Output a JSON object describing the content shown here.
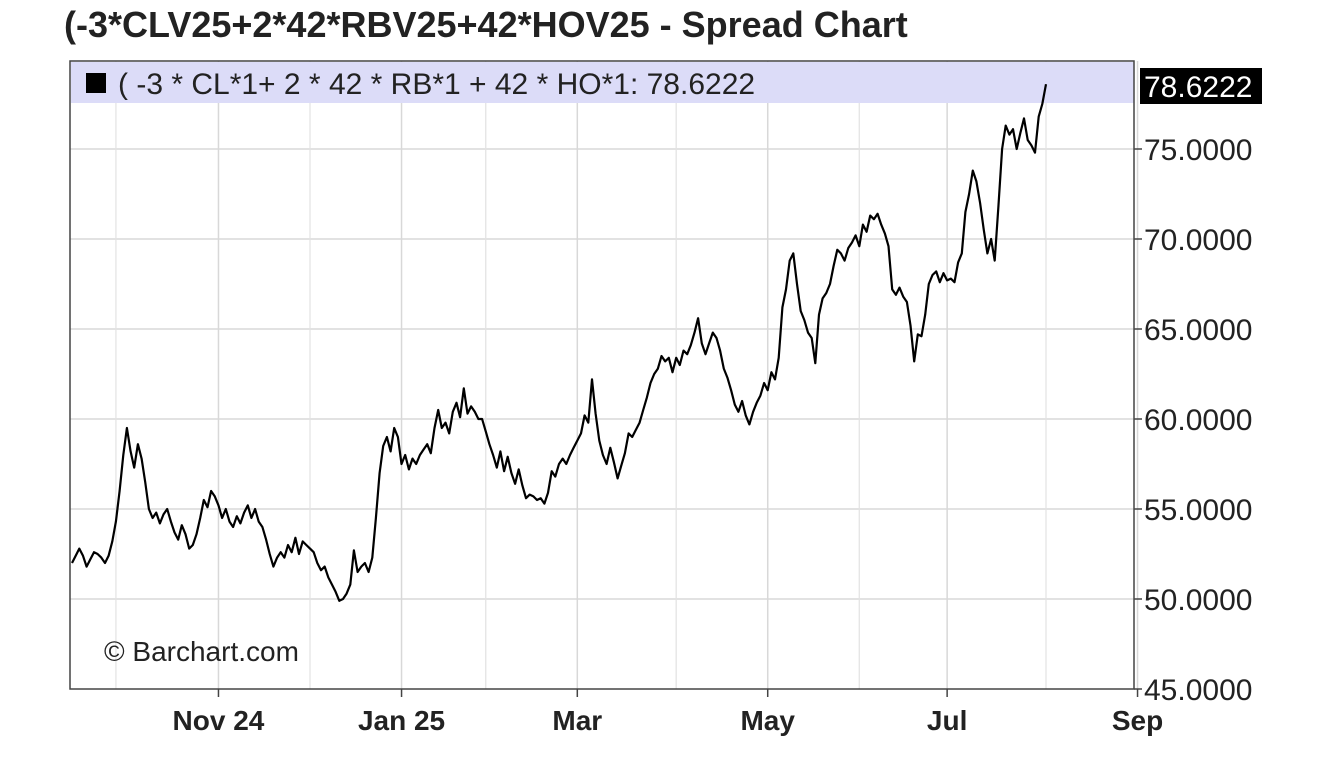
{
  "title": "(-3*CLV25+2*42*RBV25+42*HOV25 - Spread Chart",
  "watermark": "© Barchart.com",
  "chart_data": {
    "type": "line",
    "title": "(-3*CLV25+2*42*RBV25+42*HOV25 - Spread Chart",
    "legend_label": "( -3 * CL*1+ 2 * 42 * RB*1 + 42 * HO*1: 78.6222",
    "last_value_label": "78.6222",
    "ylim": [
      45,
      80
    ],
    "y_ticks": [
      {
        "v": 45,
        "label": "45.0000"
      },
      {
        "v": 50,
        "label": "50.0000"
      },
      {
        "v": 55,
        "label": "55.0000"
      },
      {
        "v": 60,
        "label": "60.0000"
      },
      {
        "v": 65,
        "label": "65.0000"
      },
      {
        "v": 70,
        "label": "70.0000"
      },
      {
        "v": 75,
        "label": "75.0000"
      }
    ],
    "x_range": [
      0,
      330
    ],
    "x_ticks": [
      {
        "t": 40,
        "label": "Nov 24"
      },
      {
        "t": 90,
        "label": "Jan 25"
      },
      {
        "t": 138,
        "label": "Mar"
      },
      {
        "t": 190,
        "label": "May"
      },
      {
        "t": 239,
        "label": "Jul"
      },
      {
        "t": 291,
        "label": "Sep"
      }
    ],
    "minor_grid_t": [
      12,
      65,
      113,
      165,
      215,
      266
    ],
    "grid": true,
    "legend_position": "top-left",
    "series": [
      {
        "color": "#000000",
        "points": [
          [
            0,
            52.0
          ],
          [
            1,
            52.4
          ],
          [
            2,
            52.8
          ],
          [
            3,
            52.4
          ],
          [
            4,
            51.8
          ],
          [
            5,
            52.2
          ],
          [
            6,
            52.6
          ],
          [
            7,
            52.5
          ],
          [
            8,
            52.3
          ],
          [
            9,
            52.0
          ],
          [
            10,
            52.4
          ],
          [
            11,
            53.2
          ],
          [
            12,
            54.3
          ],
          [
            13,
            56.0
          ],
          [
            14,
            58.0
          ],
          [
            15,
            59.5
          ],
          [
            16,
            58.2
          ],
          [
            17,
            57.3
          ],
          [
            18,
            58.6
          ],
          [
            19,
            57.8
          ],
          [
            20,
            56.5
          ],
          [
            21,
            55.0
          ],
          [
            22,
            54.5
          ],
          [
            23,
            54.8
          ],
          [
            24,
            54.2
          ],
          [
            25,
            54.7
          ],
          [
            26,
            55.0
          ],
          [
            27,
            54.3
          ],
          [
            28,
            53.7
          ],
          [
            29,
            53.3
          ],
          [
            30,
            54.1
          ],
          [
            31,
            53.6
          ],
          [
            32,
            52.8
          ],
          [
            33,
            53.0
          ],
          [
            34,
            53.6
          ],
          [
            35,
            54.5
          ],
          [
            36,
            55.5
          ],
          [
            37,
            55.1
          ],
          [
            38,
            56.0
          ],
          [
            39,
            55.7
          ],
          [
            40,
            55.2
          ],
          [
            41,
            54.5
          ],
          [
            42,
            55.0
          ],
          [
            43,
            54.3
          ],
          [
            44,
            54.0
          ],
          [
            45,
            54.6
          ],
          [
            46,
            54.2
          ],
          [
            47,
            54.8
          ],
          [
            48,
            55.2
          ],
          [
            49,
            54.5
          ],
          [
            50,
            55.0
          ],
          [
            51,
            54.3
          ],
          [
            52,
            54.0
          ],
          [
            53,
            53.3
          ],
          [
            54,
            52.5
          ],
          [
            55,
            51.8
          ],
          [
            56,
            52.3
          ],
          [
            57,
            52.6
          ],
          [
            58,
            52.3
          ],
          [
            59,
            53.0
          ],
          [
            60,
            52.6
          ],
          [
            61,
            53.4
          ],
          [
            62,
            52.5
          ],
          [
            63,
            53.2
          ],
          [
            64,
            53.0
          ],
          [
            65,
            52.8
          ],
          [
            66,
            52.6
          ],
          [
            67,
            52.0
          ],
          [
            68,
            51.6
          ],
          [
            69,
            51.8
          ],
          [
            70,
            51.2
          ],
          [
            71,
            50.8
          ],
          [
            72,
            50.4
          ],
          [
            73,
            49.9
          ],
          [
            74,
            50.0
          ],
          [
            75,
            50.3
          ],
          [
            76,
            50.8
          ],
          [
            77,
            52.7
          ],
          [
            78,
            51.5
          ],
          [
            79,
            51.8
          ],
          [
            80,
            52.0
          ],
          [
            81,
            51.5
          ],
          [
            82,
            52.3
          ],
          [
            83,
            54.5
          ],
          [
            84,
            57.0
          ],
          [
            85,
            58.5
          ],
          [
            86,
            59.0
          ],
          [
            87,
            58.2
          ],
          [
            88,
            59.5
          ],
          [
            89,
            59.0
          ],
          [
            90,
            57.5
          ],
          [
            91,
            58.0
          ],
          [
            92,
            57.2
          ],
          [
            93,
            57.8
          ],
          [
            94,
            57.5
          ],
          [
            95,
            58.0
          ],
          [
            96,
            58.3
          ],
          [
            97,
            58.6
          ],
          [
            98,
            58.1
          ],
          [
            99,
            59.5
          ],
          [
            100,
            60.5
          ],
          [
            101,
            59.5
          ],
          [
            102,
            59.8
          ],
          [
            103,
            59.2
          ],
          [
            104,
            60.4
          ],
          [
            105,
            60.9
          ],
          [
            106,
            60.1
          ],
          [
            107,
            61.7
          ],
          [
            108,
            60.3
          ],
          [
            109,
            60.7
          ],
          [
            110,
            60.4
          ],
          [
            111,
            60.0
          ],
          [
            112,
            60.0
          ],
          [
            113,
            59.3
          ],
          [
            114,
            58.6
          ],
          [
            115,
            58.0
          ],
          [
            116,
            57.3
          ],
          [
            117,
            58.2
          ],
          [
            118,
            57.1
          ],
          [
            119,
            57.9
          ],
          [
            120,
            57.0
          ],
          [
            121,
            56.4
          ],
          [
            122,
            57.2
          ],
          [
            123,
            56.3
          ],
          [
            124,
            55.6
          ],
          [
            125,
            55.8
          ],
          [
            126,
            55.7
          ],
          [
            127,
            55.5
          ],
          [
            128,
            55.6
          ],
          [
            129,
            55.3
          ],
          [
            130,
            55.9
          ],
          [
            131,
            57.1
          ],
          [
            132,
            56.8
          ],
          [
            133,
            57.5
          ],
          [
            134,
            57.8
          ],
          [
            135,
            57.5
          ],
          [
            136,
            58.0
          ],
          [
            137,
            58.4
          ],
          [
            138,
            58.8
          ],
          [
            139,
            59.2
          ],
          [
            140,
            60.2
          ],
          [
            141,
            59.8
          ],
          [
            142,
            62.2
          ],
          [
            143,
            60.3
          ],
          [
            144,
            58.8
          ],
          [
            145,
            58.0
          ],
          [
            146,
            57.5
          ],
          [
            147,
            58.4
          ],
          [
            148,
            57.6
          ],
          [
            149,
            56.7
          ],
          [
            150,
            57.4
          ],
          [
            151,
            58.1
          ],
          [
            152,
            59.2
          ],
          [
            153,
            59.0
          ],
          [
            154,
            59.4
          ],
          [
            155,
            59.8
          ],
          [
            156,
            60.5
          ],
          [
            157,
            61.2
          ],
          [
            158,
            62.0
          ],
          [
            159,
            62.5
          ],
          [
            160,
            62.8
          ],
          [
            161,
            63.5
          ],
          [
            162,
            63.2
          ],
          [
            163,
            63.4
          ],
          [
            164,
            62.6
          ],
          [
            165,
            63.4
          ],
          [
            166,
            63.0
          ],
          [
            167,
            63.8
          ],
          [
            168,
            63.6
          ],
          [
            169,
            64.1
          ],
          [
            170,
            64.8
          ],
          [
            171,
            65.6
          ],
          [
            172,
            64.2
          ],
          [
            173,
            63.6
          ],
          [
            174,
            64.2
          ],
          [
            175,
            64.8
          ],
          [
            176,
            64.5
          ],
          [
            177,
            63.8
          ],
          [
            178,
            62.8
          ],
          [
            179,
            62.3
          ],
          [
            180,
            61.6
          ],
          [
            181,
            60.8
          ],
          [
            182,
            60.4
          ],
          [
            183,
            61.0
          ],
          [
            184,
            60.2
          ],
          [
            185,
            59.7
          ],
          [
            186,
            60.4
          ],
          [
            187,
            60.9
          ],
          [
            188,
            61.3
          ],
          [
            189,
            62.0
          ],
          [
            190,
            61.6
          ],
          [
            191,
            62.6
          ],
          [
            192,
            62.2
          ],
          [
            193,
            63.4
          ],
          [
            194,
            66.2
          ],
          [
            195,
            67.2
          ],
          [
            196,
            68.8
          ],
          [
            197,
            69.2
          ],
          [
            198,
            67.5
          ],
          [
            199,
            66.0
          ],
          [
            200,
            65.5
          ],
          [
            201,
            64.8
          ],
          [
            202,
            64.5
          ],
          [
            203,
            63.1
          ],
          [
            204,
            65.8
          ],
          [
            205,
            66.7
          ],
          [
            206,
            67.0
          ],
          [
            207,
            67.5
          ],
          [
            208,
            68.5
          ],
          [
            209,
            69.4
          ],
          [
            210,
            69.2
          ],
          [
            211,
            68.8
          ],
          [
            212,
            69.5
          ],
          [
            213,
            69.8
          ],
          [
            214,
            70.2
          ],
          [
            215,
            69.6
          ],
          [
            216,
            70.8
          ],
          [
            217,
            70.4
          ],
          [
            218,
            71.3
          ],
          [
            219,
            71.1
          ],
          [
            220,
            71.4
          ],
          [
            221,
            70.8
          ],
          [
            222,
            70.3
          ],
          [
            223,
            69.6
          ],
          [
            224,
            67.2
          ],
          [
            225,
            66.9
          ],
          [
            226,
            67.3
          ],
          [
            227,
            66.8
          ],
          [
            228,
            66.5
          ],
          [
            229,
            65.2
          ],
          [
            230,
            63.2
          ],
          [
            231,
            64.7
          ],
          [
            232,
            64.6
          ],
          [
            233,
            65.8
          ],
          [
            234,
            67.5
          ],
          [
            235,
            68.0
          ],
          [
            236,
            68.2
          ],
          [
            237,
            67.6
          ],
          [
            238,
            68.1
          ],
          [
            239,
            67.7
          ],
          [
            240,
            67.8
          ],
          [
            241,
            67.6
          ],
          [
            242,
            68.7
          ],
          [
            243,
            69.2
          ],
          [
            244,
            71.5
          ],
          [
            245,
            72.5
          ],
          [
            246,
            73.8
          ],
          [
            247,
            73.2
          ],
          [
            248,
            72.0
          ],
          [
            249,
            70.5
          ],
          [
            250,
            69.2
          ],
          [
            251,
            70.0
          ],
          [
            252,
            68.8
          ],
          [
            253,
            71.8
          ],
          [
            254,
            75.0
          ],
          [
            255,
            76.3
          ],
          [
            256,
            75.8
          ],
          [
            257,
            76.1
          ],
          [
            258,
            75.0
          ],
          [
            259,
            75.9
          ],
          [
            260,
            76.7
          ],
          [
            261,
            75.5
          ],
          [
            262,
            75.2
          ],
          [
            263,
            74.8
          ],
          [
            264,
            76.8
          ],
          [
            265,
            77.5
          ],
          [
            266,
            78.6
          ]
        ]
      }
    ]
  }
}
